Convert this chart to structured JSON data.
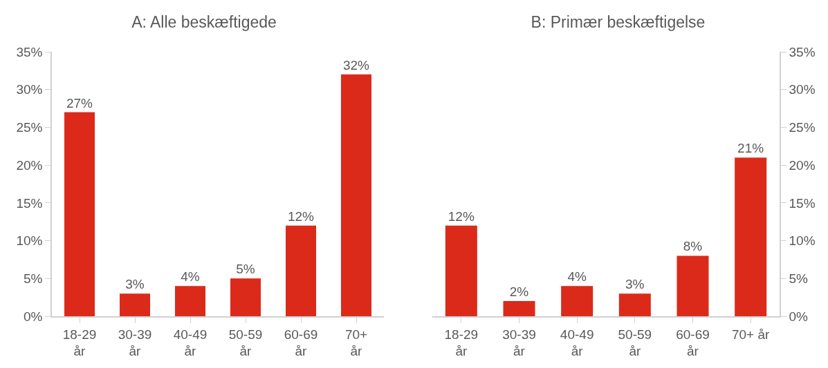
{
  "chart_data": [
    {
      "type": "bar",
      "title": "A: Alle beskæftigede",
      "categories": [
        "18-29 år",
        "30-39 år",
        "40-49 år",
        "50-59 år",
        "60-69 år",
        "70+ år"
      ],
      "series": [
        {
          "color": "#dc2a1a",
          "values": [
            27,
            3,
            4,
            5,
            12,
            32
          ],
          "value_labels": [
            "27%",
            "3%",
            "4%",
            "5%",
            "12%",
            "32%"
          ]
        }
      ],
      "ylim": [
        0,
        35
      ],
      "yticks": [
        {
          "value": 0,
          "label": "0%"
        },
        {
          "value": 5,
          "label": "5%"
        },
        {
          "value": 10,
          "label": "10%"
        },
        {
          "value": 15,
          "label": "15%"
        },
        {
          "value": 20,
          "label": "20%"
        },
        {
          "value": 25,
          "label": "25%"
        },
        {
          "value": 30,
          "label": "30%"
        },
        {
          "value": 35,
          "label": "35%"
        }
      ]
    },
    {
      "type": "bar",
      "title": "B: Primær beskæftigelse",
      "categories": [
        "18-29 år",
        "30-39 år",
        "40-49 år",
        "50-59 år",
        "60-69 år",
        "70+ år"
      ],
      "series": [
        {
          "color": "#dc2a1a",
          "axis": "y2",
          "values": [
            12,
            2,
            4,
            3,
            8,
            21
          ],
          "value_labels": [
            "12%",
            "2%",
            "4%",
            "3%",
            "8%",
            "21%"
          ]
        }
      ],
      "y2lim": [
        0,
        35
      ],
      "y2ticks": [
        {
          "value": 0,
          "label": "0%"
        },
        {
          "value": 5,
          "label": "5%"
        },
        {
          "value": 10,
          "label": "10%"
        },
        {
          "value": 15,
          "label": "15%"
        },
        {
          "value": 20,
          "label": "20%"
        },
        {
          "value": 25,
          "label": "25%"
        },
        {
          "value": 30,
          "label": "30%"
        },
        {
          "value": 35,
          "label": "35%"
        }
      ]
    }
  ]
}
